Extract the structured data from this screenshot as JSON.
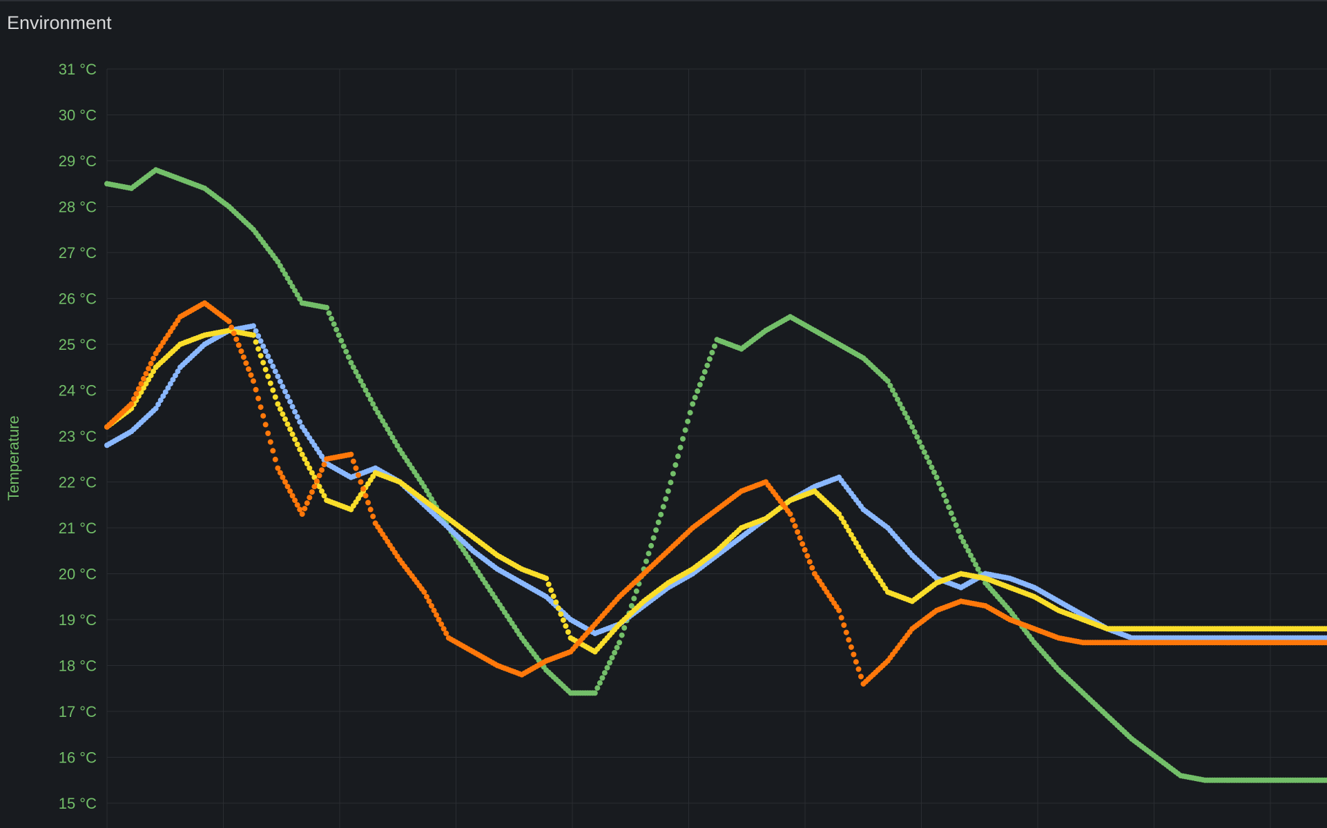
{
  "panel": {
    "title": "Environment"
  },
  "chart_data": {
    "type": "scatter",
    "title": "Environment",
    "xlabel": "",
    "ylabel": "Temperature",
    "y_unit": "°C",
    "ylim": [
      15,
      31
    ],
    "xlim": [
      0,
      100
    ],
    "yticks": [
      "15 °C",
      "16 °C",
      "17 °C",
      "18 °C",
      "19 °C",
      "20 °C",
      "21 °C",
      "22 °C",
      "23 °C",
      "24 °C",
      "25 °C",
      "26 °C",
      "27 °C",
      "28 °C",
      "29 °C",
      "30 °C",
      "31 °C"
    ],
    "grid": true,
    "legend": "none",
    "axis_color": "#73bf69",
    "series": [
      {
        "color": "#73bf69",
        "x": [
          0,
          2,
          4,
          6,
          8,
          10,
          12,
          14,
          16,
          18,
          20,
          22,
          24,
          26,
          28,
          30,
          32,
          34,
          36,
          38,
          40,
          42,
          44,
          46,
          48,
          50,
          52,
          54,
          56,
          58,
          60,
          62,
          64,
          66,
          68,
          70,
          72,
          74,
          76,
          78,
          80,
          82,
          84,
          86,
          88,
          90,
          92,
          94,
          96,
          98,
          100
        ],
        "values": [
          28.5,
          28.4,
          28.8,
          28.6,
          28.4,
          28.0,
          27.5,
          26.8,
          25.9,
          25.8,
          24.6,
          23.6,
          22.7,
          21.9,
          21.0,
          20.2,
          19.4,
          18.6,
          17.9,
          17.4,
          17.4,
          18.5,
          20.1,
          21.8,
          23.7,
          25.1,
          24.9,
          25.3,
          25.6,
          25.3,
          25.0,
          24.7,
          24.2,
          23.2,
          22.1,
          20.8,
          19.8,
          19.2,
          18.5,
          17.9,
          17.4,
          16.9,
          16.4,
          16.0,
          15.6,
          15.5,
          15.5,
          15.5,
          15.5,
          15.5,
          15.5
        ]
      },
      {
        "color": "#8ab8ff",
        "x": [
          0,
          2,
          4,
          6,
          8,
          10,
          12,
          14,
          16,
          18,
          20,
          22,
          24,
          26,
          28,
          30,
          32,
          34,
          36,
          38,
          40,
          42,
          44,
          46,
          48,
          50,
          52,
          54,
          56,
          58,
          60,
          62,
          64,
          66,
          68,
          70,
          72,
          74,
          76,
          78,
          80,
          82,
          84,
          86,
          88,
          90,
          92,
          94,
          96,
          98,
          100
        ],
        "values": [
          22.8,
          23.1,
          23.6,
          24.5,
          25.0,
          25.3,
          25.4,
          24.3,
          23.2,
          22.4,
          22.1,
          22.3,
          22.0,
          21.5,
          21.0,
          20.5,
          20.1,
          19.8,
          19.5,
          19.0,
          18.7,
          18.9,
          19.3,
          19.7,
          20.0,
          20.4,
          20.8,
          21.2,
          21.6,
          21.9,
          22.1,
          21.4,
          21.0,
          20.4,
          19.9,
          19.7,
          20.0,
          19.9,
          19.7,
          19.4,
          19.1,
          18.8,
          18.6,
          18.6,
          18.6,
          18.6,
          18.6,
          18.6,
          18.6,
          18.6,
          18.6
        ]
      },
      {
        "color": "#fade2a",
        "x": [
          0,
          2,
          4,
          6,
          8,
          10,
          12,
          14,
          16,
          18,
          20,
          22,
          24,
          26,
          28,
          30,
          32,
          34,
          36,
          38,
          40,
          42,
          44,
          46,
          48,
          50,
          52,
          54,
          56,
          58,
          60,
          62,
          64,
          66,
          68,
          70,
          72,
          74,
          76,
          78,
          80,
          82,
          84,
          86,
          88,
          90,
          92,
          94,
          96,
          98,
          100
        ],
        "values": [
          23.2,
          23.6,
          24.5,
          25.0,
          25.2,
          25.3,
          25.2,
          23.7,
          22.6,
          21.6,
          21.4,
          22.2,
          22.0,
          21.6,
          21.2,
          20.8,
          20.4,
          20.1,
          19.9,
          18.6,
          18.3,
          18.9,
          19.4,
          19.8,
          20.1,
          20.5,
          21.0,
          21.2,
          21.6,
          21.8,
          21.3,
          20.4,
          19.6,
          19.4,
          19.8,
          20.0,
          19.9,
          19.7,
          19.5,
          19.2,
          19.0,
          18.8,
          18.8,
          18.8,
          18.8,
          18.8,
          18.8,
          18.8,
          18.8,
          18.8,
          18.8
        ]
      },
      {
        "color": "#ff780a",
        "x": [
          0,
          2,
          4,
          6,
          8,
          10,
          12,
          14,
          16,
          18,
          20,
          22,
          24,
          26,
          28,
          30,
          32,
          34,
          36,
          38,
          40,
          42,
          44,
          46,
          48,
          50,
          52,
          54,
          56,
          58,
          60,
          62,
          64,
          66,
          68,
          70,
          72,
          74,
          76,
          78,
          80,
          82,
          84,
          86,
          88,
          90,
          92,
          94,
          96,
          98,
          100
        ],
        "values": [
          23.2,
          23.7,
          24.8,
          25.6,
          25.9,
          25.5,
          24.2,
          22.3,
          21.3,
          22.5,
          22.6,
          21.1,
          20.3,
          19.6,
          18.6,
          18.3,
          18.0,
          17.8,
          18.1,
          18.3,
          18.9,
          19.5,
          20.0,
          20.5,
          21.0,
          21.4,
          21.8,
          22.0,
          21.3,
          20.0,
          19.2,
          17.6,
          18.1,
          18.8,
          19.2,
          19.4,
          19.3,
          19.0,
          18.8,
          18.6,
          18.5,
          18.5,
          18.5,
          18.5,
          18.5,
          18.5,
          18.5,
          18.5,
          18.5,
          18.5,
          18.5
        ]
      }
    ]
  }
}
